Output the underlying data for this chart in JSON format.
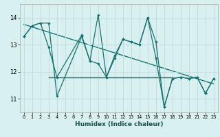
{
  "xlabel": "Humidex (Indice chaleur)",
  "xlim": [
    -0.5,
    23.5
  ],
  "ylim": [
    10.5,
    14.5
  ],
  "yticks": [
    11,
    12,
    13,
    14
  ],
  "xticks": [
    0,
    1,
    2,
    3,
    4,
    5,
    6,
    7,
    8,
    9,
    10,
    11,
    12,
    13,
    14,
    15,
    16,
    17,
    18,
    19,
    20,
    21,
    22,
    23
  ],
  "background_color": "#d8f0f0",
  "grid_color": "#c0dede",
  "line_color": "#1a7070",
  "series1_x": [
    0,
    1,
    2,
    3,
    4,
    7,
    8,
    9,
    10,
    11,
    12,
    13,
    14,
    15,
    16,
    17,
    18,
    19,
    20,
    21,
    22,
    23
  ],
  "series1_y": [
    13.3,
    13.7,
    13.8,
    13.8,
    11.1,
    13.3,
    12.4,
    12.3,
    11.8,
    12.6,
    13.2,
    13.1,
    13.0,
    14.0,
    12.5,
    10.7,
    11.75,
    11.8,
    11.75,
    11.8,
    11.2,
    11.75
  ],
  "series2_x": [
    0,
    1,
    2,
    3,
    4,
    7,
    8,
    9,
    10,
    11,
    12,
    13,
    14,
    15,
    16,
    17,
    18,
    19,
    20,
    21,
    22,
    23
  ],
  "series2_y": [
    13.3,
    13.7,
    13.8,
    12.9,
    11.8,
    13.35,
    12.4,
    14.1,
    11.8,
    12.5,
    13.2,
    13.1,
    13.0,
    14.0,
    13.1,
    10.7,
    11.75,
    11.8,
    11.75,
    11.8,
    11.2,
    11.75
  ],
  "trend_x": [
    0,
    23
  ],
  "trend_y": [
    13.75,
    11.55
  ],
  "hline_y": 11.8,
  "hline_x0": 3,
  "hline_x1": 18
}
